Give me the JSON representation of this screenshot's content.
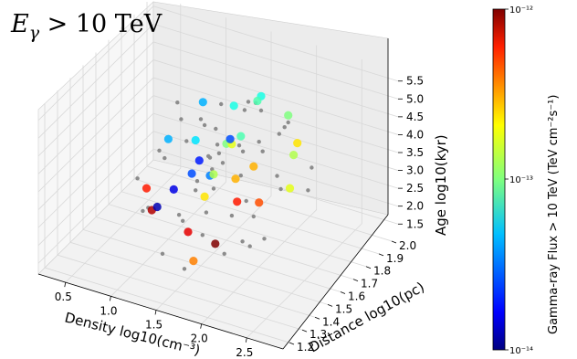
{
  "chart_data": {
    "type": "scatter",
    "projection": "3d",
    "title": {
      "main": "E",
      "sub": "γ",
      "rest": " > 10 TeV"
    },
    "xlabel": "Density log10(cm⁻³)",
    "ylabel": "Distance log10(pc)",
    "zlabel": "Age log10(kyr)",
    "x_ticks": [
      "0.5",
      "1.0",
      "1.5",
      "2.0",
      "2.5"
    ],
    "y_ticks": [
      "1.2",
      "1.3",
      "1.4",
      "1.5",
      "1.6",
      "1.7",
      "1.8",
      "1.9",
      "2.0"
    ],
    "z_ticks": [
      "1.5",
      "2.0",
      "2.5",
      "3.0",
      "3.5",
      "4.0",
      "4.5",
      "5.0",
      "5.5"
    ],
    "xlim": [
      0.2,
      2.9
    ],
    "ylim": [
      1.15,
      2.05
    ],
    "zlim": [
      1.2,
      5.8
    ],
    "colorbar": {
      "label": "Gamma-ray Flux > 10 TeV (TeV cm⁻²s⁻¹)",
      "min_label": "10⁻¹⁴",
      "mid_label": "10⁻¹³",
      "max_label": "10⁻¹²",
      "log_min": -14,
      "log_max": -12,
      "colormap": "jet"
    },
    "grey_color": "#8c8c8c",
    "series": [
      {
        "kind": "undetected",
        "points": [
          [
            1.2,
            1.6,
            4.1
          ],
          [
            1.4,
            1.7,
            3.8
          ],
          [
            1.6,
            1.5,
            4.3
          ],
          [
            1.8,
            1.6,
            3.6
          ],
          [
            1.3,
            1.8,
            4.5
          ],
          [
            1.7,
            1.4,
            3.2
          ],
          [
            1.5,
            1.6,
            3.0
          ],
          [
            1.9,
            1.7,
            4.0
          ],
          [
            2.0,
            1.5,
            3.4
          ],
          [
            1.1,
            1.5,
            3.9
          ],
          [
            1.6,
            1.8,
            4.8
          ],
          [
            1.4,
            1.4,
            2.9
          ],
          [
            1.8,
            1.9,
            3.7
          ],
          [
            1.2,
            1.3,
            3.3
          ],
          [
            2.1,
            1.7,
            3.1
          ],
          [
            1.5,
            1.2,
            2.6
          ],
          [
            1.7,
            1.6,
            2.4
          ],
          [
            1.9,
            1.4,
            2.2
          ],
          [
            1.3,
            1.6,
            2.8
          ],
          [
            2.2,
            1.6,
            3.9
          ],
          [
            1.0,
            1.7,
            4.2
          ],
          [
            0.9,
            1.6,
            3.6
          ],
          [
            1.6,
            1.9,
            4.2
          ],
          [
            1.4,
            2.0,
            3.9
          ],
          [
            2.3,
            1.8,
            3.5
          ],
          [
            1.1,
            1.9,
            3.3
          ],
          [
            1.8,
            1.3,
            3.0
          ],
          [
            1.5,
            1.5,
            5.3
          ],
          [
            1.7,
            1.7,
            5.0
          ],
          [
            2.0,
            1.8,
            4.4
          ],
          [
            1.3,
            1.5,
            2.3
          ],
          [
            1.6,
            1.3,
            1.9
          ],
          [
            1.9,
            1.6,
            1.7
          ],
          [
            1.2,
            1.8,
            2.6
          ],
          [
            2.1,
            1.4,
            2.7
          ],
          [
            1.4,
            1.6,
            4.7
          ],
          [
            0.8,
            1.5,
            3.1
          ],
          [
            1.0,
            1.4,
            2.7
          ],
          [
            2.4,
            1.7,
            3.3
          ],
          [
            1.6,
            1.6,
            3.8
          ],
          [
            1.5,
            1.8,
            3.5
          ],
          [
            1.7,
            1.5,
            4.5
          ],
          [
            1.9,
            1.9,
            4.1
          ],
          [
            1.3,
            1.7,
            3.4
          ],
          [
            2.2,
            1.5,
            2.5
          ],
          [
            1.8,
            1.7,
            2.1
          ],
          [
            1.1,
            1.6,
            5.1
          ],
          [
            1.6,
            1.4,
            4.0
          ],
          [
            2.0,
            1.6,
            4.7
          ],
          [
            1.4,
            1.9,
            2.9
          ]
        ]
      },
      {
        "kind": "detected",
        "points": [
          {
            "d": 1.3,
            "r": 1.6,
            "a": 4.2,
            "f": -13.3
          },
          {
            "d": 1.5,
            "r": 1.7,
            "a": 3.9,
            "f": -13.0
          },
          {
            "d": 1.7,
            "r": 1.6,
            "a": 4.4,
            "f": -12.8
          },
          {
            "d": 1.4,
            "r": 1.8,
            "a": 3.6,
            "f": -13.6
          },
          {
            "d": 1.9,
            "r": 1.5,
            "a": 3.3,
            "f": -12.3
          },
          {
            "d": 1.2,
            "r": 1.5,
            "a": 3.1,
            "f": -13.8
          },
          {
            "d": 1.6,
            "r": 1.9,
            "a": 4.6,
            "f": -13.2
          },
          {
            "d": 1.8,
            "r": 1.7,
            "a": 3.5,
            "f": -12.6
          },
          {
            "d": 1.1,
            "r": 1.4,
            "a": 2.8,
            "f": -12.1
          },
          {
            "d": 2.0,
            "r": 1.6,
            "a": 3.0,
            "f": -12.4
          },
          {
            "d": 1.5,
            "r": 1.4,
            "a": 2.5,
            "f": -12.2
          },
          {
            "d": 1.3,
            "r": 1.3,
            "a": 3.4,
            "f": -13.9
          },
          {
            "d": 1.7,
            "r": 1.8,
            "a": 4.9,
            "f": -13.1
          },
          {
            "d": 2.1,
            "r": 1.8,
            "a": 3.7,
            "f": -12.9
          },
          {
            "d": 1.0,
            "r": 1.6,
            "a": 4.0,
            "f": -13.4
          },
          {
            "d": 1.6,
            "r": 1.5,
            "a": 3.8,
            "f": -13.5
          },
          {
            "d": 1.4,
            "r": 1.6,
            "a": 2.7,
            "f": -12.7
          },
          {
            "d": 1.8,
            "r": 1.4,
            "a": 2.4,
            "f": -12.0
          },
          {
            "d": 1.2,
            "r": 1.7,
            "a": 3.2,
            "f": -13.7
          },
          {
            "d": 1.9,
            "r": 1.9,
            "a": 4.3,
            "f": -13.0
          },
          {
            "d": 0.9,
            "r": 1.5,
            "a": 2.9,
            "f": -12.3
          },
          {
            "d": 1.5,
            "r": 1.6,
            "a": 3.4,
            "f": -12.9
          },
          {
            "d": 1.7,
            "r": 1.3,
            "a": 2.2,
            "f": -12.5
          },
          {
            "d": 2.2,
            "r": 1.7,
            "a": 3.2,
            "f": -12.8
          },
          {
            "d": 1.3,
            "r": 1.9,
            "a": 4.1,
            "f": -13.2
          },
          {
            "d": 1.6,
            "r": 1.7,
            "a": 3.0,
            "f": -12.6
          },
          {
            "d": 1.1,
            "r": 1.8,
            "a": 4.4,
            "f": -13.4
          },
          {
            "d": 1.8,
            "r": 1.6,
            "a": 4.7,
            "f": -13.1
          },
          {
            "d": 2.0,
            "r": 1.9,
            "a": 3.6,
            "f": -12.7
          },
          {
            "d": 1.4,
            "r": 1.5,
            "a": 3.7,
            "f": -13.6
          }
        ]
      }
    ],
    "grid": true
  }
}
